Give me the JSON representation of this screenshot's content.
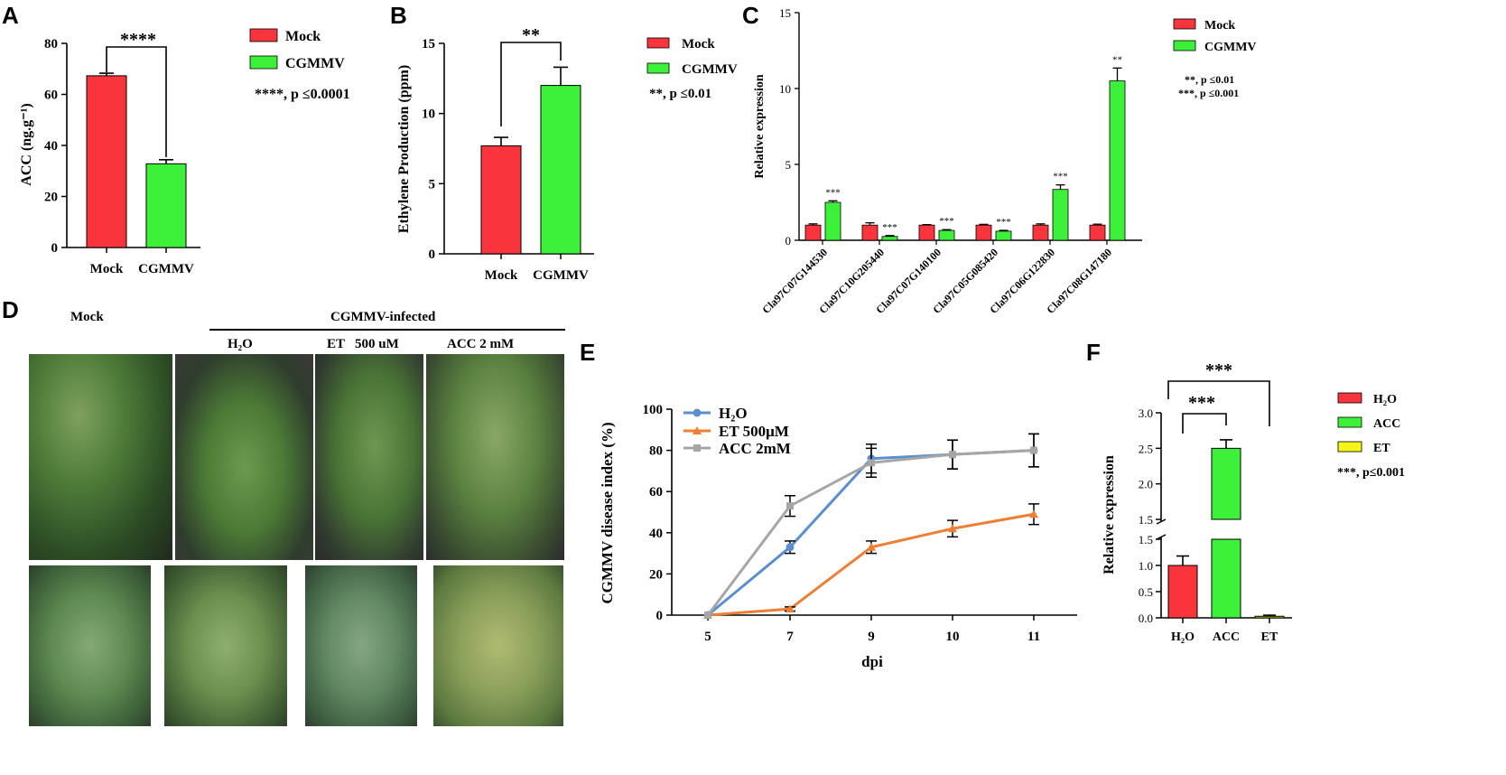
{
  "panel_letters": {
    "A": "A",
    "B": "B",
    "C": "C",
    "D": "D",
    "E": "E",
    "F": "F"
  },
  "colors": {
    "mock": "#f8343c",
    "cgmmv": "#3df039",
    "h2o": "#5b8fd0",
    "et_line": "#ee7f36",
    "acc_line": "#a6a6a6",
    "et_bar": "#f5f51a"
  },
  "chart_data": [
    {
      "panel": "A",
      "type": "bar",
      "categories": [
        "Mock",
        "CGMMV"
      ],
      "values": [
        67.3,
        32.8
      ],
      "errors": [
        1.0,
        1.6
      ],
      "ylabel": "ACC (ng.g⁻¹)",
      "yticks": [
        "0",
        "20",
        "40",
        "60",
        "80"
      ],
      "ylim": [
        0,
        80
      ],
      "legend": [
        "Mock",
        "CGMMV"
      ],
      "significance": "****",
      "note": "****,  p ≤0.0001"
    },
    {
      "panel": "B",
      "type": "bar",
      "categories": [
        "Mock",
        "CGMMV"
      ],
      "values": [
        7.7,
        12.0
      ],
      "errors": [
        0.6,
        1.3
      ],
      "ylabel": "Ethylene Production (ppm)",
      "yticks": [
        "0",
        "5",
        "10",
        "15"
      ],
      "ylim": [
        0,
        15
      ],
      "legend": [
        "Mock",
        "CGMMV"
      ],
      "significance": "**",
      "note": "**, p ≤0.01"
    },
    {
      "panel": "C",
      "type": "bar",
      "categories": [
        "Cla97C07G144530",
        "Cla97C10G205440",
        "Cla97C07G140100",
        "Cla97C05G085420",
        "Cla97C06G122830",
        "Cla97C08G147180"
      ],
      "series": [
        {
          "name": "Mock",
          "values": [
            1.0,
            1.0,
            1.0,
            1.0,
            1.0,
            1.0
          ],
          "errors": [
            0.08,
            0.15,
            0.03,
            0.05,
            0.08,
            0.06
          ]
        },
        {
          "name": "CGMMV",
          "values": [
            2.5,
            0.25,
            0.65,
            0.6,
            3.35,
            10.5
          ],
          "errors": [
            0.1,
            0.06,
            0.05,
            0.05,
            0.3,
            0.85
          ]
        }
      ],
      "stars": [
        "***",
        "***",
        "***",
        "***",
        "***",
        "**"
      ],
      "ylabel": "Relative expression",
      "yticks": [
        "0",
        "5",
        "10",
        "15"
      ],
      "ylim": [
        0,
        15
      ],
      "notes": [
        "**, p ≤0.01",
        "***, p ≤0.001"
      ]
    },
    {
      "panel": "E",
      "type": "line",
      "x": [
        "5",
        "7",
        "9",
        "10",
        "11"
      ],
      "series": [
        {
          "name": "H₂O",
          "values": [
            0,
            33,
            76,
            78,
            80
          ],
          "errors": [
            0,
            3,
            7,
            7,
            8
          ]
        },
        {
          "name": "ET 500μM",
          "values": [
            0,
            3,
            33,
            42,
            49
          ],
          "errors": [
            0,
            1,
            3,
            4,
            5
          ]
        },
        {
          "name": "ACC 2mM",
          "values": [
            0,
            53,
            74,
            78,
            80
          ],
          "errors": [
            0,
            5,
            7,
            7,
            8
          ]
        }
      ],
      "xlabel": "dpi",
      "ylabel": "CGMMV disease index (%)",
      "yticks": [
        "0",
        "20",
        "40",
        "60",
        "80",
        "100"
      ],
      "ylim": [
        0,
        100
      ]
    },
    {
      "panel": "F",
      "type": "bar",
      "categories": [
        "H₂O",
        "ACC",
        "ET"
      ],
      "values": [
        1.0,
        2.5,
        0.03
      ],
      "errors": [
        0.18,
        0.12,
        0.02
      ],
      "ylabel": "Relative expression",
      "yticks_lower": [
        "0.0",
        "0.5",
        "1.0",
        "1.5"
      ],
      "yticks_upper": [
        "1.5",
        "2.0",
        "2.5",
        "3.0"
      ],
      "legend": [
        "H₂O",
        "ACC",
        "ET"
      ],
      "significance": [
        "***",
        "***"
      ],
      "note": "***, p≤0.001"
    }
  ],
  "panel_d": {
    "mock_label": "Mock",
    "group_label": "CGMMV-infected",
    "treatments": [
      "H₂O",
      "ET   500 uM",
      "ACC 2 mM"
    ]
  }
}
